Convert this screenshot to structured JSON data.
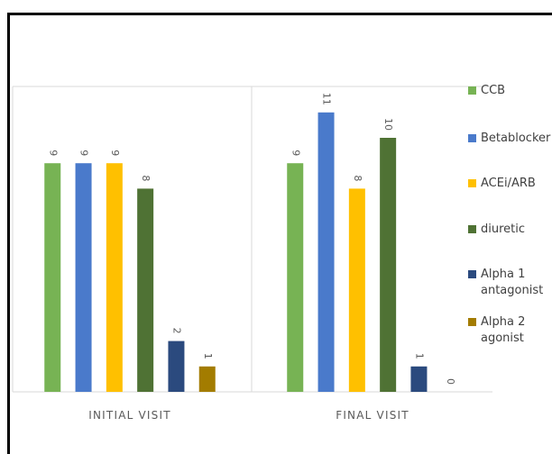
{
  "chart_data": {
    "type": "bar",
    "categories": [
      "INITIAL VISIT",
      "FINAL VISIT"
    ],
    "series": [
      {
        "name": "CCB",
        "color": "#77b354",
        "values": [
          9,
          9
        ]
      },
      {
        "name": "Betablocker",
        "color": "#4a7acb",
        "values": [
          9,
          11
        ]
      },
      {
        "name": "ACEi/ARB",
        "color": "#ffc000",
        "values": [
          9,
          8
        ]
      },
      {
        "name": "diuretic",
        "color": "#4f7234",
        "values": [
          8,
          10
        ]
      },
      {
        "name": "Alpha 1 antagonist",
        "color": "#2b4a7e",
        "values": [
          2,
          1
        ]
      },
      {
        "name": "Alpha 2 agonist",
        "color": "#a37c00",
        "values": [
          1,
          0
        ]
      }
    ],
    "ylim": [
      0,
      12
    ],
    "grid": false,
    "legend": "right",
    "data_labels": true
  }
}
